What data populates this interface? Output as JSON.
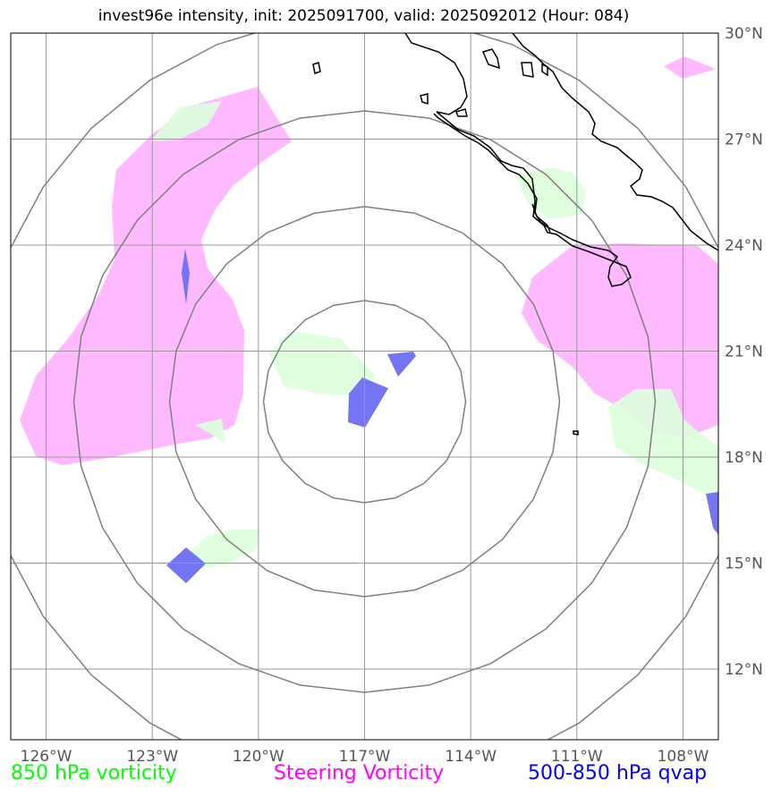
{
  "title": "invest96e intensity, init: 2025091700, valid: 2025092012 (Hour: 084)",
  "lat_ticks": [
    "30°N",
    "27°N",
    "24°N",
    "21°N",
    "18°N",
    "15°N",
    "12°N"
  ],
  "lon_ticks": [
    "126°W",
    "123°W",
    "120°W",
    "117°W",
    "114°W",
    "111°W",
    "108°W"
  ],
  "legend": {
    "vort850": {
      "label": "850 hPa vorticity",
      "color": "#00ff00"
    },
    "steering": {
      "label": "Steering Vorticity",
      "color": "#ff00ff"
    },
    "qvap": {
      "label": "500-850 hPa qvap",
      "color": "#0000ff"
    }
  },
  "colors": {
    "steering_fill": "#ffbaff",
    "vort850_fill": "#dcffdc",
    "qvap_fill": "#6e6ef2",
    "grid": "#999999",
    "range_rings": "#808080",
    "coast": "#000000"
  },
  "map": {
    "lon_range": [
      -127,
      -107
    ],
    "lat_range": [
      10,
      30
    ],
    "center": {
      "lon": -117,
      "lat": 20
    }
  }
}
